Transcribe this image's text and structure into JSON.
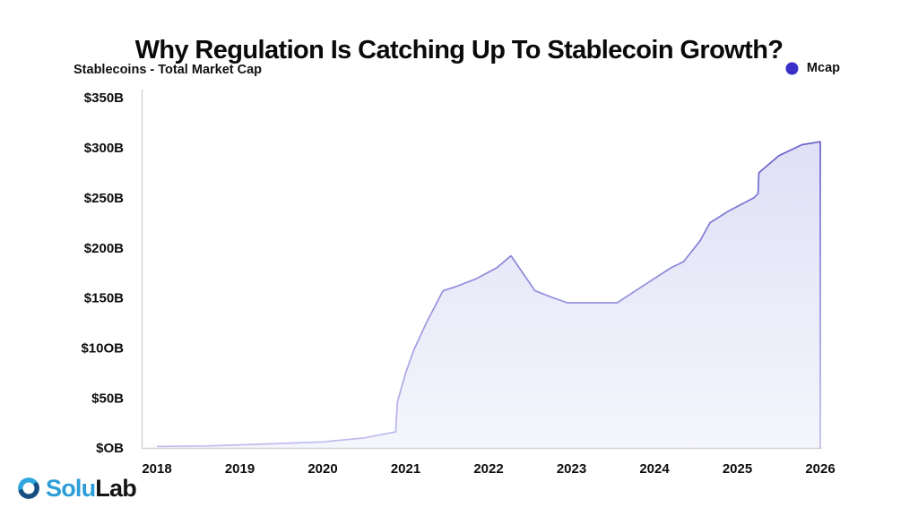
{
  "header": {
    "title": "Why Regulation Is Catching Up To Stablecoin Growth?",
    "subtitle": "Stablecoins - Total Market Cap"
  },
  "legend": {
    "items": [
      {
        "label": "Mcap",
        "color": "#3a2fc8"
      }
    ]
  },
  "colors": {
    "text": "#0d0d0d",
    "axis": "#d2d2d8",
    "line_top": "#5b52c8",
    "line_bottom": "#c0bdee",
    "fill_color": "#6060d2",
    "fill_opacity_top": "0.22",
    "fill_opacity_bottom": "0.06"
  },
  "footer": {
    "logo_part1": "Solu",
    "logo_part2": "Lab",
    "logo_color_1": "#2c9dd7",
    "logo_color_2": "#151515",
    "icon_color_light": "#2fa7de",
    "icon_color_dark": "#174e82"
  },
  "chart_data": {
    "type": "area",
    "title": "Why Regulation Is Catching Up To Stablecoin Growth?",
    "subtitle": "Stablecoins - Total Market Cap",
    "series_name": "Mcap",
    "xlabel": "",
    "ylabel": "",
    "grid": false,
    "legend_position": "top-right",
    "xlim": [
      2018,
      2026
    ],
    "ylim": [
      0,
      358
    ],
    "x_ticks": [
      "2018",
      "2019",
      "2020",
      "2021",
      "2022",
      "2023",
      "2024",
      "2025",
      "2026"
    ],
    "y_tick_values": [
      0,
      50,
      100,
      150,
      200,
      250,
      300,
      350
    ],
    "y_tick_labels": [
      "$OB",
      "$50B",
      "$10OB",
      "$150B",
      "$200B",
      "$250B",
      "$300B",
      "$350B"
    ],
    "points_unit": "[year, market cap in $B]",
    "points": [
      [
        2018.0,
        1.5
      ],
      [
        2018.6,
        2
      ],
      [
        2019.0,
        3
      ],
      [
        2019.5,
        4.5
      ],
      [
        2020.0,
        6
      ],
      [
        2020.5,
        10
      ],
      [
        2020.88,
        16
      ],
      [
        2020.9,
        46
      ],
      [
        2021.0,
        75
      ],
      [
        2021.1,
        98
      ],
      [
        2021.25,
        125
      ],
      [
        2021.45,
        157
      ],
      [
        2021.6,
        161
      ],
      [
        2021.85,
        169
      ],
      [
        2022.1,
        180
      ],
      [
        2022.27,
        192
      ],
      [
        2022.56,
        157
      ],
      [
        2022.78,
        150
      ],
      [
        2022.95,
        145
      ],
      [
        2023.55,
        145
      ],
      [
        2023.9,
        164
      ],
      [
        2024.2,
        180
      ],
      [
        2024.35,
        186
      ],
      [
        2024.55,
        207
      ],
      [
        2024.67,
        225
      ],
      [
        2024.9,
        237
      ],
      [
        2025.2,
        250
      ],
      [
        2025.25,
        254
      ],
      [
        2025.26,
        275
      ],
      [
        2025.5,
        292
      ],
      [
        2025.78,
        303
      ],
      [
        2026.0,
        306
      ]
    ]
  }
}
